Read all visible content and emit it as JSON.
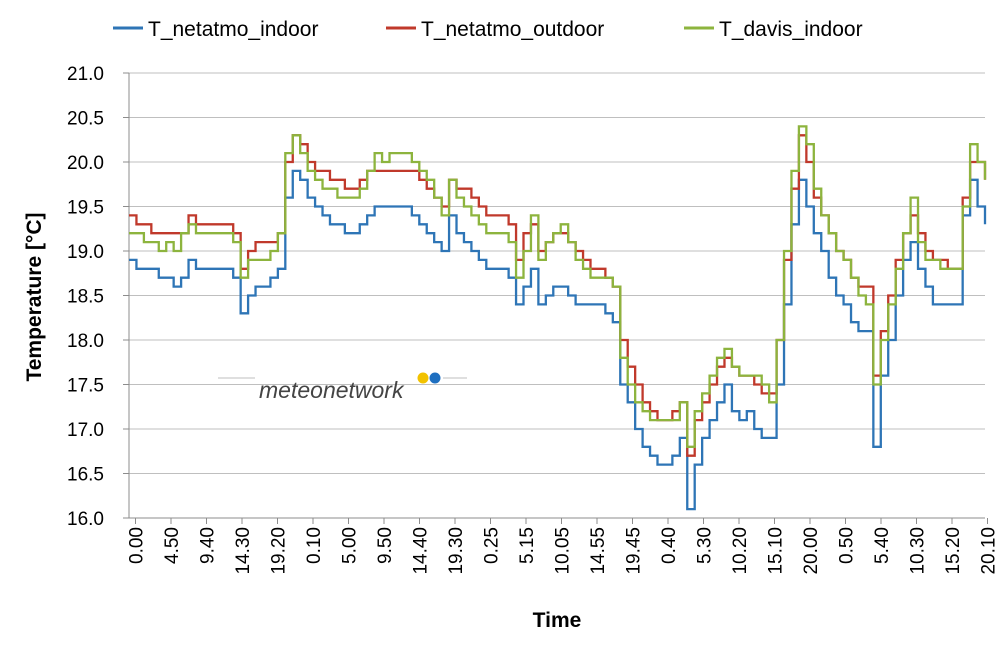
{
  "watermark": {
    "text_a": "meteo",
    "text_b": "network",
    "dot1_color": "#F2C200",
    "dot2_color": "#1E6FC0"
  },
  "chart_data": {
    "type": "line",
    "xlabel": "Time",
    "ylabel": "Temperature [°C]",
    "ylim": [
      16.0,
      21.0
    ],
    "y_ticks": [
      "16.0",
      "16.5",
      "17.0",
      "17.5",
      "18.0",
      "18.5",
      "19.0",
      "19.5",
      "20.0",
      "20.5",
      "21.0"
    ],
    "x_tick_labels": [
      "0.00",
      "4.50",
      "9.40",
      "14.30",
      "19.20",
      "0.10",
      "5.00",
      "9.50",
      "14.40",
      "19.30",
      "0.25",
      "5.15",
      "10.05",
      "14.55",
      "19.45",
      "0.40",
      "5.30",
      "10.20",
      "15.10",
      "20.00",
      "0.50",
      "5.40",
      "10.30",
      "15.20",
      "20.10"
    ],
    "grid": true,
    "legend_position": "top",
    "series": [
      {
        "name": "T_netatmo_indoor",
        "color": "#2E75B6",
        "values": [
          18.9,
          18.8,
          18.8,
          18.8,
          18.7,
          18.7,
          18.6,
          18.7,
          18.9,
          18.8,
          18.8,
          18.8,
          18.8,
          18.8,
          18.7,
          18.3,
          18.5,
          18.6,
          18.6,
          18.7,
          18.8,
          19.6,
          19.9,
          19.8,
          19.6,
          19.5,
          19.4,
          19.3,
          19.3,
          19.2,
          19.2,
          19.3,
          19.4,
          19.5,
          19.5,
          19.5,
          19.5,
          19.5,
          19.4,
          19.3,
          19.2,
          19.1,
          19.0,
          19.4,
          19.2,
          19.1,
          19.0,
          18.9,
          18.8,
          18.8,
          18.8,
          18.7,
          18.4,
          18.6,
          18.8,
          18.4,
          18.5,
          18.6,
          18.6,
          18.5,
          18.4,
          18.4,
          18.4,
          18.4,
          18.3,
          18.2,
          17.5,
          17.3,
          17.0,
          16.8,
          16.7,
          16.6,
          16.6,
          16.7,
          16.9,
          16.1,
          16.6,
          16.9,
          17.1,
          17.3,
          17.5,
          17.2,
          17.1,
          17.2,
          17.0,
          16.9,
          16.9,
          17.5,
          18.4,
          19.3,
          19.8,
          19.5,
          19.2,
          19.0,
          18.7,
          18.5,
          18.4,
          18.2,
          18.1,
          18.1,
          16.8,
          17.6,
          18.0,
          18.5,
          18.9,
          19.1,
          18.8,
          18.6,
          18.4,
          18.4,
          18.4,
          18.4,
          19.4,
          19.8,
          19.5,
          19.3
        ]
      },
      {
        "name": "T_netatmo_outdoor",
        "color": "#C0392B",
        "values": [
          19.4,
          19.3,
          19.3,
          19.2,
          19.2,
          19.2,
          19.2,
          19.2,
          19.4,
          19.3,
          19.3,
          19.3,
          19.3,
          19.3,
          19.2,
          18.8,
          19.0,
          19.1,
          19.1,
          19.1,
          19.2,
          20.0,
          20.3,
          20.2,
          20.0,
          19.9,
          19.9,
          19.8,
          19.8,
          19.7,
          19.7,
          19.8,
          19.9,
          19.9,
          19.9,
          19.9,
          19.9,
          19.9,
          19.9,
          19.8,
          19.7,
          19.6,
          19.5,
          19.8,
          19.7,
          19.7,
          19.6,
          19.5,
          19.4,
          19.4,
          19.4,
          19.3,
          18.9,
          19.2,
          19.3,
          19.0,
          19.1,
          19.2,
          19.2,
          19.1,
          19.0,
          18.9,
          18.8,
          18.8,
          18.7,
          18.6,
          18.0,
          17.7,
          17.5,
          17.3,
          17.2,
          17.1,
          17.1,
          17.2,
          17.3,
          16.7,
          17.1,
          17.3,
          17.5,
          17.7,
          17.8,
          17.7,
          17.6,
          17.6,
          17.5,
          17.4,
          17.4,
          18.0,
          18.9,
          19.7,
          20.3,
          20.0,
          19.6,
          19.4,
          19.2,
          19.0,
          18.9,
          18.7,
          18.6,
          18.6,
          17.6,
          18.1,
          18.5,
          18.9,
          19.2,
          19.4,
          19.2,
          19.0,
          18.9,
          18.9,
          18.8,
          18.8,
          19.6,
          20.0,
          20.0,
          19.8
        ]
      },
      {
        "name": "T_davis_indoor",
        "color": "#8DB43E",
        "values": [
          19.2,
          19.2,
          19.1,
          19.1,
          19.0,
          19.1,
          19.0,
          19.2,
          19.3,
          19.2,
          19.2,
          19.2,
          19.2,
          19.2,
          19.1,
          18.7,
          18.9,
          18.9,
          18.9,
          19.0,
          19.2,
          20.1,
          20.3,
          20.1,
          19.9,
          19.8,
          19.7,
          19.7,
          19.6,
          19.6,
          19.6,
          19.7,
          19.9,
          20.1,
          20.0,
          20.1,
          20.1,
          20.1,
          20.0,
          19.9,
          19.8,
          19.6,
          19.4,
          19.8,
          19.6,
          19.5,
          19.4,
          19.3,
          19.2,
          19.2,
          19.2,
          19.1,
          18.7,
          19.0,
          19.4,
          18.9,
          19.1,
          19.2,
          19.3,
          19.1,
          18.9,
          18.8,
          18.7,
          18.7,
          18.7,
          18.6,
          17.8,
          17.5,
          17.3,
          17.2,
          17.1,
          17.1,
          17.1,
          17.1,
          17.3,
          16.8,
          17.2,
          17.4,
          17.6,
          17.8,
          17.9,
          17.7,
          17.6,
          17.6,
          17.6,
          17.5,
          17.3,
          18.0,
          19.0,
          19.9,
          20.4,
          20.2,
          19.7,
          19.4,
          19.2,
          19.0,
          18.9,
          18.7,
          18.5,
          18.4,
          17.5,
          18.0,
          18.4,
          18.8,
          19.2,
          19.6,
          19.1,
          18.9,
          18.9,
          18.8,
          18.8,
          18.8,
          19.5,
          20.2,
          20.0,
          19.8
        ]
      }
    ]
  }
}
